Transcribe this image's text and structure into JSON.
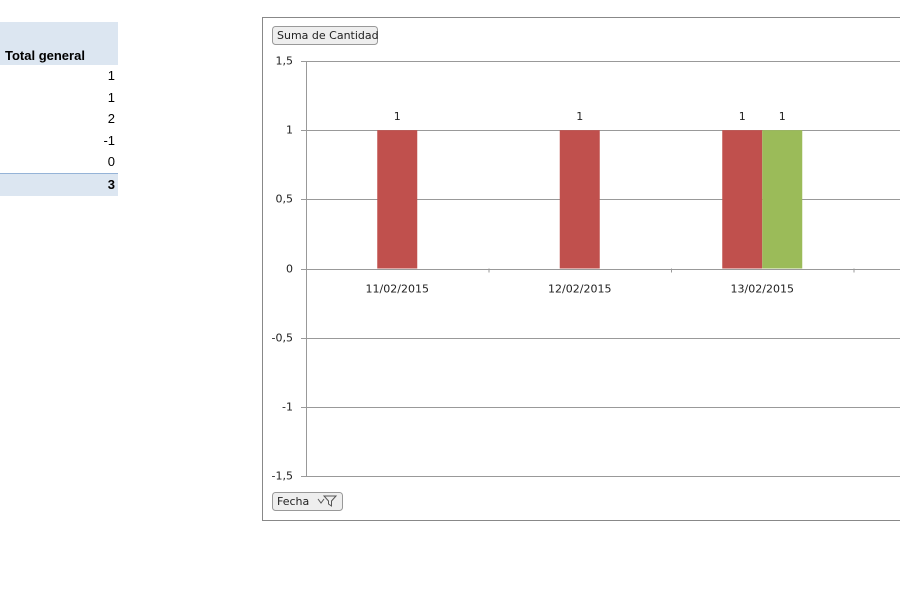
{
  "table": {
    "header": "Total general",
    "rows": [
      1,
      1,
      2,
      -1,
      0
    ],
    "total": 3
  },
  "chart_data": {
    "type": "bar",
    "value_field_button": "Suma de Cantidad",
    "axis_field_button": "Fecha",
    "categories": [
      "11/02/2015",
      "12/02/2015",
      "13/02/2015"
    ],
    "series": [
      {
        "color": "#c0504d",
        "values": [
          1,
          1,
          1
        ]
      },
      {
        "color": "#9bbb59",
        "values": [
          null,
          null,
          1
        ]
      }
    ],
    "ylim": [
      -1.5,
      1.5
    ],
    "yticks": [
      {
        "value": -1.5,
        "label": "-1,5"
      },
      -1,
      {
        "value": -0.5,
        "label": "-0,5"
      },
      0,
      {
        "value": 0.5,
        "label": "0,5"
      },
      1,
      {
        "value": 1.5,
        "label": "1,5"
      }
    ],
    "grid": true
  }
}
